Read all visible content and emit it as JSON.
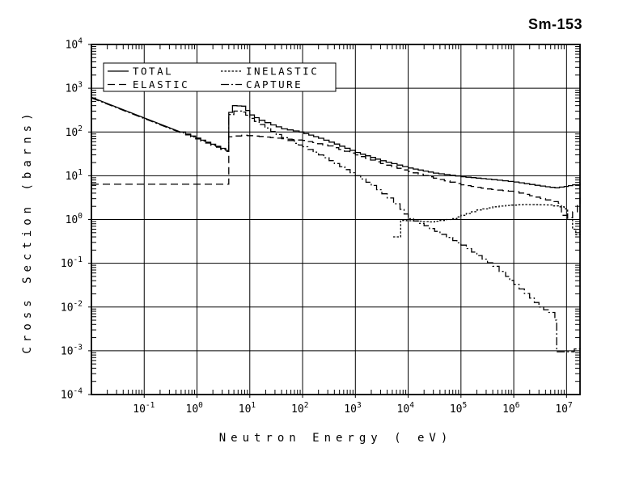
{
  "header": {
    "title": "Sm-153"
  },
  "colors": {
    "line": "#000000",
    "background": "#ffffff",
    "text": "#000000"
  },
  "chart_data": {
    "type": "line",
    "title": "Sm-153",
    "xlabel": "Neutron Energy ( eV)",
    "ylabel": "Cross Section (barns)",
    "x_scale": "log",
    "y_scale": "log",
    "xlim": [
      0.01,
      18000000
    ],
    "ylim": [
      0.0001,
      10000
    ],
    "grid": true,
    "x_tick_exponents": [
      -1,
      0,
      1,
      2,
      3,
      4,
      5,
      6,
      7
    ],
    "y_tick_exponents": [
      4,
      3,
      2,
      1,
      0,
      -1,
      -2,
      -3,
      -4
    ],
    "legend_position": "top-left-inside",
    "dash_styles": {
      "solid": "",
      "long-dash": "9,5",
      "fine-dash": "2.5,2",
      "dash-dot": "10,3,2,3"
    },
    "legend": {
      "columns": 2,
      "entries": [
        {
          "label": "TOTAL",
          "style": "solid"
        },
        {
          "label": "INELASTIC",
          "style": "fine-dash"
        },
        {
          "label": "ELASTIC",
          "style": "long-dash"
        },
        {
          "label": "CAPTURE",
          "style": "dash-dot"
        }
      ]
    },
    "series": [
      {
        "name": "CAPTURE",
        "style": "dash-dot",
        "smooth_below": 0.6,
        "points": [
          [
            0.01,
            600
          ],
          [
            0.49,
            96
          ],
          [
            3.5,
            36
          ],
          [
            4,
            36
          ],
          [
            4,
            250
          ],
          [
            5,
            300
          ],
          [
            7,
            285
          ],
          [
            10,
            205
          ],
          [
            15,
            148
          ],
          [
            25,
            103
          ],
          [
            40,
            74
          ],
          [
            70,
            55
          ],
          [
            100,
            46
          ],
          [
            200,
            30
          ],
          [
            400,
            19
          ],
          [
            1000,
            10
          ],
          [
            2000,
            6
          ],
          [
            4000,
            3.1
          ],
          [
            7000,
            1.7
          ],
          [
            10000,
            1.05
          ],
          [
            20000,
            0.72
          ],
          [
            40000,
            0.46
          ],
          [
            70000,
            0.33
          ],
          [
            100000,
            0.26
          ],
          [
            200000,
            0.15
          ],
          [
            400000,
            0.085
          ],
          [
            700000,
            0.05
          ],
          [
            1000000,
            0.033
          ],
          [
            2000000,
            0.016
          ],
          [
            3000000,
            0.01
          ],
          [
            4500000,
            0.0075
          ],
          [
            6000000,
            0.005
          ],
          [
            6500000,
            0.0045
          ],
          [
            6500000,
            0.00095
          ],
          [
            14000000,
            0.00095
          ],
          [
            14000000,
            0.0011
          ],
          [
            18000000,
            0.0012
          ]
        ]
      },
      {
        "name": "INELASTIC",
        "style": "fine-dash",
        "smooth_below": 0,
        "points": [
          [
            5200,
            0.4
          ],
          [
            7200,
            0.42
          ],
          [
            7200,
            0.95
          ],
          [
            15000,
            0.92
          ],
          [
            25000,
            0.88
          ],
          [
            40000,
            0.95
          ],
          [
            70000,
            1.05
          ],
          [
            100000,
            1.25
          ],
          [
            200000,
            1.65
          ],
          [
            400000,
            1.95
          ],
          [
            700000,
            2.1
          ],
          [
            1500000,
            2.2
          ],
          [
            4000000,
            2.15
          ],
          [
            7000000,
            1.95
          ],
          [
            9000000,
            1.75
          ],
          [
            10500000,
            1.0
          ],
          [
            13000000,
            0.6
          ],
          [
            15000000,
            0.45
          ],
          [
            18000000,
            0.55
          ]
        ]
      },
      {
        "name": "ELASTIC",
        "style": "long-dash",
        "smooth_below": 0,
        "points": [
          [
            0.01,
            6.4
          ],
          [
            4,
            6.4
          ],
          [
            4,
            78
          ],
          [
            7,
            84
          ],
          [
            15,
            79
          ],
          [
            40,
            70
          ],
          [
            100,
            64
          ],
          [
            300,
            48
          ],
          [
            1000,
            30
          ],
          [
            3000,
            19
          ],
          [
            10000,
            12.5
          ],
          [
            30000,
            8.8
          ],
          [
            100000,
            6.2
          ],
          [
            300000,
            5.0
          ],
          [
            1000000,
            4.3
          ],
          [
            2000000,
            3.5
          ],
          [
            4000000,
            2.8
          ],
          [
            7000000,
            2.35
          ],
          [
            8000000,
            2.3
          ],
          [
            8000000,
            1.25
          ],
          [
            10500000,
            1.1
          ],
          [
            13000000,
            1.5
          ],
          [
            16000000,
            2.3
          ],
          [
            18000000,
            3.2
          ]
        ]
      },
      {
        "name": "TOTAL",
        "style": "solid",
        "smooth_below": 0.6,
        "points": [
          [
            0.01,
            620
          ],
          [
            0.49,
            100
          ],
          [
            3.5,
            38
          ],
          [
            4,
            38
          ],
          [
            4,
            280
          ],
          [
            4.7,
            400
          ],
          [
            7,
            390
          ],
          [
            10,
            245
          ],
          [
            15,
            185
          ],
          [
            25,
            145
          ],
          [
            40,
            118
          ],
          [
            86,
            100
          ],
          [
            200,
            72
          ],
          [
            400,
            53
          ],
          [
            1000,
            34
          ],
          [
            3000,
            22
          ],
          [
            10000,
            15
          ],
          [
            30000,
            11.5
          ],
          [
            100000,
            9.5
          ],
          [
            300000,
            8.4
          ],
          [
            1000000,
            7.2
          ],
          [
            2000000,
            6.3
          ],
          [
            4000000,
            5.6
          ],
          [
            6000000,
            5.3
          ],
          [
            9000000,
            5.7
          ],
          [
            13000000,
            6.2
          ],
          [
            18000000,
            6.8
          ]
        ]
      }
    ]
  }
}
